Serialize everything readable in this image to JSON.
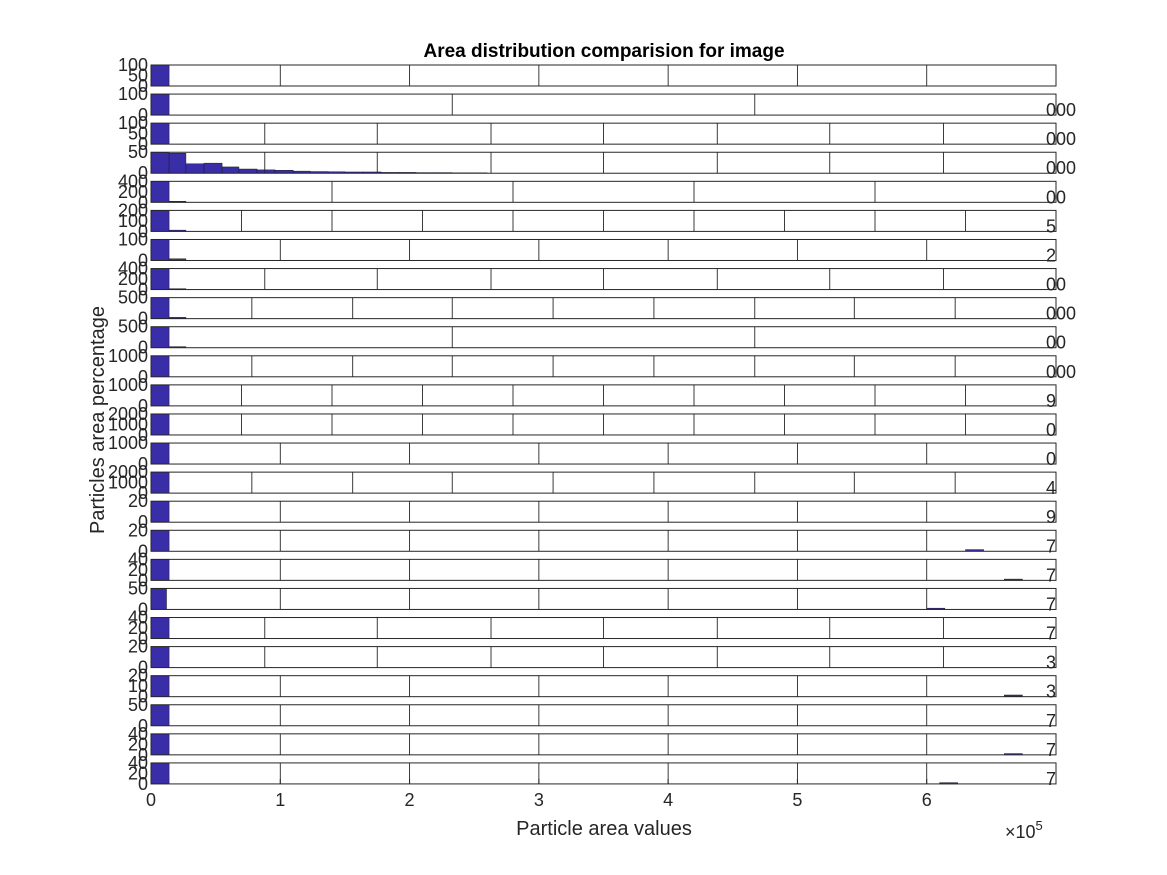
{
  "chart_data": {
    "type": "bar",
    "title": "Area distribution comparision for image",
    "xlabel": "Particle area values",
    "ylabel": "Particles area percentage",
    "x_exponent_label": "×10",
    "x_exponent": "5",
    "xlim": [
      0,
      7
    ],
    "bottom_xticks": [
      "0",
      "1",
      "2",
      "3",
      "4",
      "5",
      "6"
    ],
    "colors": {
      "bar": "#3a2ea8",
      "bar_edge": "#1a1a1a",
      "axes": "#262626",
      "grid": "#262626"
    },
    "panels": [
      {
        "xlim": [
          0,
          7
        ],
        "xgrid": [
          1,
          2,
          3,
          4,
          5,
          6
        ],
        "yticks": [
          "100",
          "50",
          "0"
        ],
        "right_label": "",
        "bars": [
          [
            0,
            0.14,
            1.0
          ]
        ]
      },
      {
        "xlim": [
          0,
          7
        ],
        "xgrid": [
          2.33,
          4.67
        ],
        "yticks": [
          "100",
          "0"
        ],
        "right_label": "000",
        "bars": [
          [
            0,
            0.14,
            1.0
          ]
        ]
      },
      {
        "xlim": [
          0,
          7
        ],
        "xgrid": [
          0.88,
          1.75,
          2.63,
          3.5,
          4.38,
          5.25,
          6.13
        ],
        "yticks": [
          "100",
          "50",
          "0"
        ],
        "right_label": "000",
        "bars": [
          [
            0,
            0.14,
            1.0
          ]
        ]
      },
      {
        "xlim": [
          0,
          7
        ],
        "xgrid": [
          0.88,
          1.75,
          2.63,
          3.5,
          4.38,
          5.25,
          6.13
        ],
        "yticks": [
          "50",
          "0"
        ],
        "right_label": "000",
        "bars": [
          [
            0,
            0.14,
            1.0
          ],
          [
            0.14,
            0.27,
            0.95
          ],
          [
            0.27,
            0.41,
            0.45
          ],
          [
            0.41,
            0.55,
            0.48
          ],
          [
            0.55,
            0.68,
            0.3
          ],
          [
            0.68,
            0.82,
            0.2
          ],
          [
            0.82,
            0.96,
            0.16
          ],
          [
            0.96,
            1.1,
            0.14
          ],
          [
            1.1,
            1.23,
            0.1
          ],
          [
            1.23,
            1.37,
            0.08
          ],
          [
            1.37,
            1.5,
            0.07
          ],
          [
            1.5,
            1.64,
            0.06
          ],
          [
            1.64,
            1.78,
            0.06
          ],
          [
            1.78,
            1.92,
            0.04
          ],
          [
            1.92,
            2.05,
            0.04
          ],
          [
            2.05,
            2.19,
            0.03
          ],
          [
            2.19,
            2.33,
            0.03
          ],
          [
            2.33,
            2.46,
            0.02
          ],
          [
            2.46,
            2.6,
            0.02
          ]
        ]
      },
      {
        "xlim": [
          0,
          7
        ],
        "xgrid": [
          1.4,
          2.8,
          4.2,
          5.6
        ],
        "yticks": [
          "400",
          "200",
          "0"
        ],
        "right_label": "00",
        "bars": [
          [
            0,
            0.14,
            1.0
          ],
          [
            0.14,
            0.27,
            0.05
          ]
        ]
      },
      {
        "xlim": [
          0,
          7
        ],
        "xgrid": [
          0.7,
          1.4,
          2.1,
          2.8,
          3.5,
          4.2,
          4.9,
          5.6,
          6.3
        ],
        "yticks": [
          "200",
          "100",
          "0"
        ],
        "right_label": "5",
        "bars": [
          [
            0,
            0.14,
            1.0
          ],
          [
            0.14,
            0.27,
            0.06
          ]
        ]
      },
      {
        "xlim": [
          0,
          7
        ],
        "xgrid": [
          1,
          2,
          3,
          4,
          5,
          6
        ],
        "yticks": [
          "100",
          "0"
        ],
        "right_label": "2",
        "bars": [
          [
            0,
            0.14,
            1.0
          ],
          [
            0.14,
            0.27,
            0.08
          ]
        ]
      },
      {
        "xlim": [
          0,
          7
        ],
        "xgrid": [
          0.88,
          1.75,
          2.63,
          3.5,
          4.38,
          5.25,
          6.13
        ],
        "yticks": [
          "400",
          "200",
          "0"
        ],
        "right_label": "00",
        "bars": [
          [
            0,
            0.14,
            1.0
          ],
          [
            0.14,
            0.27,
            0.04
          ]
        ]
      },
      {
        "xlim": [
          0,
          7
        ],
        "xgrid": [
          0.78,
          1.56,
          2.33,
          3.11,
          3.89,
          4.67,
          5.44,
          6.22
        ],
        "yticks": [
          "500",
          "0"
        ],
        "right_label": "000",
        "bars": [
          [
            0,
            0.14,
            1.0
          ],
          [
            0.14,
            0.27,
            0.06
          ]
        ]
      },
      {
        "xlim": [
          0,
          7
        ],
        "xgrid": [
          2.33,
          4.67
        ],
        "yticks": [
          "500",
          "0"
        ],
        "right_label": "00",
        "bars": [
          [
            0,
            0.14,
            1.0
          ],
          [
            0.14,
            0.27,
            0.05
          ]
        ]
      },
      {
        "xlim": [
          0,
          7
        ],
        "xgrid": [
          0.78,
          1.56,
          2.33,
          3.11,
          3.89,
          4.67,
          5.44,
          6.22
        ],
        "yticks": [
          "1000",
          "0"
        ],
        "right_label": "000",
        "bars": [
          [
            0,
            0.14,
            1.0
          ]
        ]
      },
      {
        "xlim": [
          0,
          7
        ],
        "xgrid": [
          0.7,
          1.4,
          2.1,
          2.8,
          3.5,
          4.2,
          4.9,
          5.6,
          6.3
        ],
        "yticks": [
          "1000",
          "0"
        ],
        "right_label": "9",
        "bars": [
          [
            0,
            0.14,
            1.0
          ]
        ]
      },
      {
        "xlim": [
          0,
          7
        ],
        "xgrid": [
          0.7,
          1.4,
          2.1,
          2.8,
          3.5,
          4.2,
          4.9,
          5.6,
          6.3
        ],
        "yticks": [
          "2000",
          "1000",
          "0"
        ],
        "right_label": "0",
        "bars": [
          [
            0,
            0.14,
            1.0
          ]
        ]
      },
      {
        "xlim": [
          0,
          7
        ],
        "xgrid": [
          1,
          2,
          3,
          4,
          5,
          6
        ],
        "yticks": [
          "1000",
          "0"
        ],
        "right_label": "0",
        "bars": [
          [
            0,
            0.14,
            1.0
          ]
        ]
      },
      {
        "xlim": [
          0,
          7
        ],
        "xgrid": [
          0.78,
          1.56,
          2.33,
          3.11,
          3.89,
          4.67,
          5.44,
          6.22
        ],
        "yticks": [
          "2000",
          "1000",
          "0"
        ],
        "right_label": "4",
        "bars": [
          [
            0,
            0.14,
            1.0
          ]
        ]
      },
      {
        "xlim": [
          0,
          7
        ],
        "xgrid": [
          1,
          2,
          3,
          4,
          5,
          6
        ],
        "yticks": [
          "20",
          "0"
        ],
        "right_label": "9",
        "bars": [
          [
            0,
            0.14,
            1.0
          ]
        ]
      },
      {
        "xlim": [
          0,
          7
        ],
        "xgrid": [
          1,
          2,
          3,
          4,
          5,
          6
        ],
        "yticks": [
          "20",
          "0"
        ],
        "right_label": "7",
        "bars": [
          [
            0,
            0.14,
            1.0
          ],
          [
            6.3,
            6.44,
            0.08
          ]
        ]
      },
      {
        "xlim": [
          0,
          7
        ],
        "xgrid": [
          1,
          2,
          3,
          4,
          5,
          6
        ],
        "yticks": [
          "40",
          "20",
          "0"
        ],
        "right_label": "7",
        "bars": [
          [
            0,
            0.14,
            1.0
          ],
          [
            6.6,
            6.74,
            0.06
          ]
        ]
      },
      {
        "xlim": [
          0,
          7
        ],
        "xgrid": [
          1,
          2,
          3,
          4,
          5,
          6
        ],
        "yticks": [
          "50",
          "0"
        ],
        "right_label": "7",
        "bars": [
          [
            0,
            0.12,
            1.0
          ],
          [
            6.0,
            6.14,
            0.06
          ]
        ]
      },
      {
        "xlim": [
          0,
          7
        ],
        "xgrid": [
          0.88,
          1.75,
          2.63,
          3.5,
          4.38,
          5.25,
          6.13
        ],
        "yticks": [
          "40",
          "20",
          "0"
        ],
        "right_label": "7",
        "bars": [
          [
            0,
            0.14,
            1.0
          ]
        ]
      },
      {
        "xlim": [
          0,
          7
        ],
        "xgrid": [
          0.88,
          1.75,
          2.63,
          3.5,
          4.38,
          5.25,
          6.13
        ],
        "yticks": [
          "20",
          "0"
        ],
        "right_label": "3",
        "bars": [
          [
            0,
            0.14,
            1.0
          ]
        ]
      },
      {
        "xlim": [
          0,
          7
        ],
        "xgrid": [
          1,
          2,
          3,
          4,
          5,
          6
        ],
        "yticks": [
          "20",
          "10",
          "0"
        ],
        "right_label": "3",
        "bars": [
          [
            0,
            0.14,
            1.0
          ],
          [
            6.6,
            6.74,
            0.08
          ]
        ]
      },
      {
        "xlim": [
          0,
          7
        ],
        "xgrid": [
          1,
          2,
          3,
          4,
          5,
          6
        ],
        "yticks": [
          "50",
          "0"
        ],
        "right_label": "7",
        "bars": [
          [
            0,
            0.14,
            1.0
          ]
        ]
      },
      {
        "xlim": [
          0,
          7
        ],
        "xgrid": [
          1,
          2,
          3,
          4,
          5,
          6
        ],
        "yticks": [
          "40",
          "20",
          "0"
        ],
        "right_label": "7",
        "bars": [
          [
            0,
            0.14,
            1.0
          ],
          [
            6.6,
            6.74,
            0.06
          ]
        ]
      },
      {
        "xlim": [
          0,
          7
        ],
        "xgrid": [
          1,
          2,
          3,
          4,
          5,
          6
        ],
        "yticks": [
          "40",
          "20",
          "0"
        ],
        "right_label": "7",
        "bars": [
          [
            0,
            0.14,
            1.0
          ],
          [
            6.1,
            6.24,
            0.06
          ]
        ]
      }
    ]
  }
}
